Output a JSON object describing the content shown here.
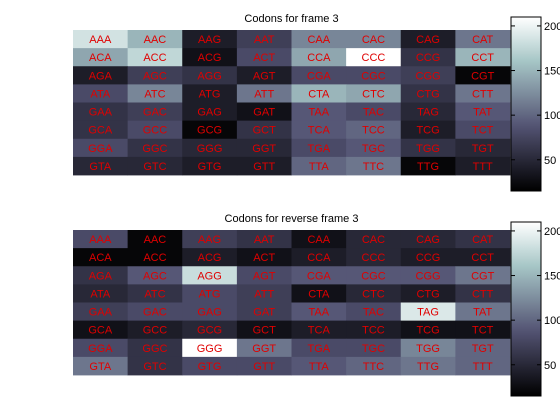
{
  "chart_data": [
    {
      "type": "heatmap",
      "title": "Codons for frame 3",
      "rows": 8,
      "cols": 8,
      "clim": [
        15,
        210
      ],
      "colorbar_ticks": [
        50,
        100,
        150,
        200
      ],
      "labels": [
        [
          "AAA",
          "AAC",
          "AAG",
          "AAT",
          "CAA",
          "CAC",
          "CAG",
          "CAT"
        ],
        [
          "ACA",
          "ACC",
          "ACG",
          "ACT",
          "CCA",
          "CCC",
          "CCG",
          "CCT"
        ],
        [
          "AGA",
          "AGC",
          "AGG",
          "AGT",
          "CGA",
          "CGC",
          "CGG",
          "CGT"
        ],
        [
          "ATA",
          "ATC",
          "ATG",
          "ATT",
          "CTA",
          "CTC",
          "CTG",
          "CTT"
        ],
        [
          "GAA",
          "GAC",
          "GAG",
          "GAT",
          "TAA",
          "TAC",
          "TAG",
          "TAT"
        ],
        [
          "GCA",
          "GCC",
          "GCG",
          "GCT",
          "TCA",
          "TCC",
          "TCG",
          "TCT"
        ],
        [
          "GGA",
          "GGC",
          "GGG",
          "GGT",
          "TGA",
          "TGC",
          "TGG",
          "TGT"
        ],
        [
          "GTA",
          "GTC",
          "GTG",
          "GTT",
          "TTA",
          "TTC",
          "TTG",
          "TTT"
        ]
      ],
      "values": [
        [
          185,
          150,
          40,
          70,
          120,
          120,
          40,
          110
        ],
        [
          140,
          175,
          30,
          80,
          140,
          210,
          60,
          150
        ],
        [
          40,
          70,
          60,
          40,
          80,
          80,
          70,
          20
        ],
        [
          80,
          120,
          40,
          110,
          150,
          140,
          60,
          110
        ],
        [
          60,
          70,
          40,
          30,
          90,
          80,
          50,
          90
        ],
        [
          60,
          80,
          20,
          60,
          90,
          100,
          40,
          80
        ],
        [
          80,
          60,
          50,
          50,
          80,
          90,
          60,
          50
        ],
        [
          50,
          50,
          40,
          40,
          100,
          110,
          20,
          40
        ]
      ]
    },
    {
      "type": "heatmap",
      "title": "Codons for reverse frame 3",
      "rows": 8,
      "cols": 8,
      "clim": [
        15,
        210
      ],
      "colorbar_ticks": [
        50,
        100,
        150,
        200
      ],
      "labels": [
        [
          "AAA",
          "AAC",
          "AAG",
          "AAT",
          "CAA",
          "CAC",
          "CAG",
          "CAT"
        ],
        [
          "ACA",
          "ACC",
          "ACG",
          "ACT",
          "CCA",
          "CCC",
          "CCG",
          "CCT"
        ],
        [
          "AGA",
          "AGC",
          "AGG",
          "AGT",
          "CGA",
          "CGC",
          "CGG",
          "CGT"
        ],
        [
          "ATA",
          "ATC",
          "ATG",
          "ATT",
          "CTA",
          "CTC",
          "CTG",
          "CTT"
        ],
        [
          "GAA",
          "GAC",
          "GAG",
          "GAT",
          "TAA",
          "TAC",
          "TAG",
          "TAT"
        ],
        [
          "GCA",
          "GCC",
          "GCG",
          "GCT",
          "TCA",
          "TCC",
          "TCG",
          "TCT"
        ],
        [
          "GGA",
          "GGC",
          "GGG",
          "GGT",
          "TGA",
          "TGC",
          "TGG",
          "TGT"
        ],
        [
          "GTA",
          "GTC",
          "GTG",
          "GTT",
          "TTA",
          "TTC",
          "TTG",
          "TTT"
        ]
      ],
      "values": [
        [
          80,
          20,
          70,
          60,
          30,
          50,
          50,
          60
        ],
        [
          20,
          20,
          40,
          30,
          40,
          50,
          40,
          40
        ],
        [
          60,
          90,
          180,
          80,
          90,
          90,
          90,
          110
        ],
        [
          50,
          60,
          80,
          70,
          30,
          50,
          40,
          60
        ],
        [
          70,
          80,
          80,
          70,
          90,
          80,
          190,
          110
        ],
        [
          30,
          40,
          50,
          30,
          40,
          40,
          30,
          30
        ],
        [
          80,
          60,
          210,
          110,
          80,
          80,
          120,
          100
        ],
        [
          110,
          60,
          80,
          80,
          90,
          100,
          110,
          100
        ]
      ]
    }
  ],
  "label_color": "#e00000"
}
